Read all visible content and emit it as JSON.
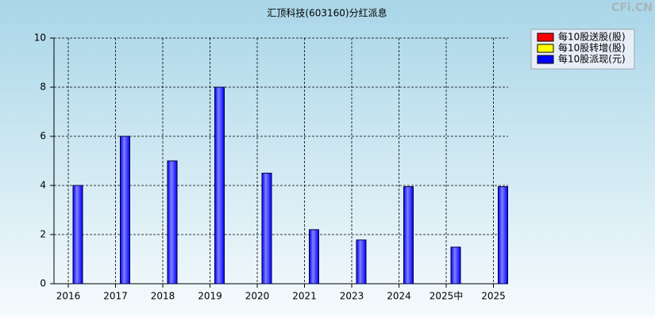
{
  "chart_data": {
    "type": "bar",
    "title": "汇顶科技(603160)分红派息",
    "watermark": "CFi.CN",
    "categories": [
      "2016",
      "2017",
      "2018",
      "2019",
      "2020",
      "2021",
      "2023",
      "2024",
      "2025中",
      "2025"
    ],
    "series": [
      {
        "name": "每10股送股(股)",
        "color": "#ff0000",
        "values": [
          null,
          null,
          null,
          null,
          null,
          null,
          null,
          null,
          null,
          null
        ]
      },
      {
        "name": "每10股转增(股)",
        "color": "#ffff00",
        "values": [
          null,
          null,
          null,
          null,
          null,
          null,
          null,
          null,
          null,
          null
        ]
      },
      {
        "name": "每10股派现(元)",
        "color": "#0000ff",
        "values": [
          4,
          6,
          5,
          8,
          4.5,
          2.2,
          1.78,
          3.95,
          1.49,
          3.95
        ]
      }
    ],
    "ylim": [
      0,
      10
    ],
    "yticks": [
      0,
      2,
      4,
      6,
      8,
      10
    ],
    "grid": true,
    "legend": "top-right"
  }
}
